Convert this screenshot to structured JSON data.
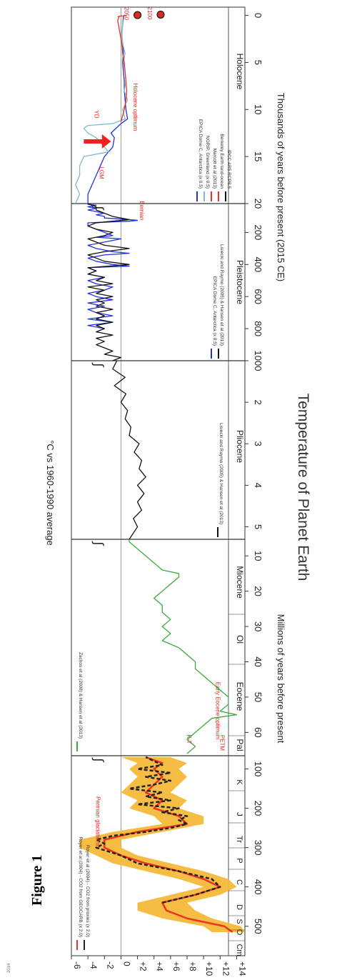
{
  "figure_label": "Figure 1",
  "footer_credit": "2014",
  "chart_data": {
    "type": "line",
    "title": "Temperature of Planet Earth",
    "ylabel": "°C vs 1960-1990 average",
    "ylim": [
      -6,
      15
    ],
    "grid": true,
    "y_ticks": [
      "+14",
      "+12",
      "+10",
      "+8",
      "+6",
      "+4",
      "+2",
      "0",
      "-2",
      "-4",
      "-6"
    ],
    "panels": [
      {
        "name": "Phanerozoic",
        "periods": [
          "Cm",
          "O",
          "S",
          "D",
          "C",
          "P",
          "Tr",
          "J",
          "K"
        ],
        "x_ticks": [
          "500",
          "400",
          "300",
          "200",
          "100"
        ],
        "legend": [
          "Royer et al (2004) - CO2 from GEOCARB (x 2.0)",
          "Royer et al (2004) - CO2 from proxies (x 2.0)"
        ],
        "annotations": [
          "Permian glaciations"
        ],
        "series": [
          {
            "name": "Royer et al (2004) - CO2 from GEOCARB (x 2.0)",
            "color": "#ee3322",
            "x": [
              515,
              500,
              480,
              460,
              440,
              420,
              400,
              380,
              360,
              340,
              320,
              300,
              280,
              260,
              240,
              220,
              200,
              180,
              160,
              140,
              120,
              100,
              85,
              70
            ],
            "y": [
              13.5,
              12.5,
              8,
              5.5,
              5,
              9,
              12,
              10,
              7,
              3,
              0,
              -2,
              -2,
              2,
              8,
              7,
              4,
              5,
              3,
              4,
              5,
              4,
              5,
              3
            ]
          },
          {
            "name": "Royer et al (2004) - CO2 from proxies (x 2.0)",
            "color": "#222222",
            "x": [
              440,
              420,
              400,
              380,
              360,
              340,
              320,
              300,
              290,
              280,
              270,
              260,
              250,
              240,
              230,
              220,
              210,
              200,
              190,
              180,
              170,
              160,
              150,
              140,
              130,
              120,
              110,
              100,
              90,
              80,
              70
            ],
            "y": [
              5,
              9,
              12,
              11,
              7,
              2,
              0,
              -3,
              -2,
              -3,
              -1,
              3,
              6,
              8,
              7,
              8,
              5,
              7,
              2,
              6,
              3,
              5,
              1,
              4,
              6,
              3,
              6,
              2,
              5,
              4,
              3
            ]
          }
        ]
      },
      {
        "name": "Cenozoic",
        "epochs": [
          "Pal",
          "Eocene",
          "Ol",
          "Miocene"
        ],
        "x_ticks": [
          "60",
          "50",
          "40",
          "30",
          "20",
          "10"
        ],
        "legend": [
          "Zachos et al (2008) & Hansen et al (2013)"
        ],
        "annotations": [
          "PETM",
          "Early Eocene optimum",
          "K-T"
        ],
        "series": [
          {
            "name": "Zachos et al (2008) & Hansen et al (2013)",
            "color": "#3daa3d",
            "x": [
              66,
              64,
              62,
              60,
              58,
              56,
              55,
              54,
              52,
              50,
              48,
              46,
              44,
              42,
              40,
              38,
              36,
              34,
              32,
              30,
              28,
              26,
              24,
              22,
              20,
              18,
              16,
              15,
              14,
              12,
              10,
              8,
              6,
              5.3
            ],
            "y": [
              8,
              9,
              8,
              9,
              10,
              11,
              14,
              12,
              13,
              13,
              12,
              11,
              10,
              9,
              9,
              8,
              7,
              5,
              6,
              5,
              6,
              5,
              5,
              4,
              5,
              6,
              7,
              7,
              5,
              4,
              3,
              2,
              1,
              1
            ]
          }
        ]
      },
      {
        "name": "Pliocene",
        "epochs": [
          "Pliocene"
        ],
        "x_ticks": [
          "5",
          "4",
          "3",
          "2"
        ],
        "legend": [
          "Lisiecki and Raymo (2005) & Hansen et al (2013)"
        ],
        "series": [
          {
            "name": "Lisiecki and Raymo (2005) & Hansen et al (2013)",
            "color": "#111111",
            "x": [
              5.3,
              5.0,
              4.8,
              4.6,
              4.4,
              4.2,
              4.0,
              3.8,
              3.6,
              3.4,
              3.2,
              3.0,
              2.8,
              2.6,
              2.4,
              2.2,
              2.0,
              1.8,
              1.6,
              1.4,
              1.2,
              1.0
            ],
            "y": [
              1,
              2,
              1.5,
              2.5,
              2,
              2.8,
              2,
              3,
              2.2,
              2.5,
              1.6,
              2.2,
              1,
              1.2,
              0.5,
              0.8,
              0,
              0.6,
              -0.8,
              0.5,
              -1,
              -0.5
            ]
          }
        ]
      },
      {
        "name": "Pleistocene",
        "epochs": [
          "Pleistocene"
        ],
        "x_ticks": [
          "1000",
          "800",
          "600",
          "400",
          "200"
        ],
        "legend": [
          "EPICA Dome C, Antarctica (x 0.5)",
          "Lisiecki and Raymo (2005) & Hansen et al (2013)"
        ],
        "annotations": [
          "Eemian"
        ],
        "series": [
          {
            "name": "EPICA Dome C, Antarctica (x 0.5)",
            "color": "#2233dd",
            "x": [
              800,
              780,
              760,
              740,
              720,
              700,
              680,
              660,
              640,
              620,
              600,
              580,
              560,
              540,
              520,
              500,
              480,
              460,
              440,
              420,
              410,
              400,
              380,
              360,
              340,
              330,
              320,
              300,
              280,
              260,
              240,
              230,
              220,
              200,
              180,
              160,
              140,
              130,
              125,
              120,
              110,
              100,
              90,
              80,
              70,
              60,
              50,
              40,
              30,
              25,
              20
            ],
            "y": [
              -2,
              -4,
              -1,
              -4,
              -1,
              -3,
              -4,
              -2,
              -4,
              -1,
              -3,
              -4,
              -2,
              -1,
              -3,
              -4,
              -2,
              -4,
              -3,
              -4,
              1,
              -1,
              -3,
              -4,
              -2,
              1,
              -1,
              -3,
              -4,
              -2,
              0,
              -3,
              -1,
              -2,
              -3,
              -4,
              -4,
              1,
              2,
              1,
              -2,
              -2,
              -3,
              -2,
              -3,
              -4,
              -3,
              -4,
              -3,
              -4,
              -4
            ]
          },
          {
            "name": "Lisiecki and Raymo (2005) & Hansen et al (2013)",
            "color": "#111111",
            "x": [
              1000,
              980,
              960,
              940,
              920,
              900,
              880,
              860,
              840,
              820,
              800,
              780,
              760,
              740,
              720,
              700,
              680,
              660,
              640,
              620,
              600,
              580,
              560,
              540,
              520,
              500,
              480,
              460,
              440,
              420,
              400,
              380,
              360,
              340,
              320,
              300,
              280,
              260,
              240,
              220,
              200,
              180,
              160,
              140,
              120,
              100,
              80,
              60,
              40,
              20
            ],
            "y": [
              -1,
              0,
              -2,
              -1,
              -2,
              -3,
              -2,
              -3,
              -1,
              -3,
              -2,
              -3,
              -1,
              -3,
              -2,
              -3,
              -1,
              -3,
              -2,
              -3,
              -1,
              -3,
              -2,
              -4,
              -1,
              -3,
              -2,
              -4,
              -3,
              -4,
              1,
              -2,
              -3,
              -4,
              -2,
              1,
              -2,
              -3,
              -4,
              -2,
              -1,
              -3,
              -4,
              -3,
              1,
              -1,
              -2,
              -3,
              -3,
              -4
            ]
          }
        ]
      },
      {
        "name": "Holocene",
        "epochs": [
          "Holocene"
        ],
        "x_ticks": [
          "20",
          "15",
          "10",
          "5",
          "0"
        ],
        "xlabel": "Thousands of years before present (2015 CE)",
        "legend": [
          "EPICA Dome C, Antarctica (x 0.5)",
          "NGRIP, Greenland (x 0.5)",
          "Marcott et al (2013)",
          "Berkeley Earth land-ocean",
          "IPCC AR5 RCP8.5"
        ],
        "annotations": [
          "LGM",
          "YD",
          "Holocene optimum",
          "2100",
          "2050"
        ],
        "series": [
          {
            "name": "EPICA Dome C, Antarctica (x 0.5)",
            "color": "#2233dd",
            "x": [
              20,
              19,
              18,
              17,
              16,
              15,
              14,
              13,
              12.5,
              12,
              11.5,
              11,
              10,
              9,
              8,
              7,
              6,
              5,
              4,
              3,
              2,
              1,
              0
            ],
            "y": [
              -4,
              -4,
              -3.5,
              -3,
              -2.5,
              -2,
              -1,
              -0.8,
              -1.2,
              -0.6,
              0,
              0.8,
              0.6,
              0.5,
              0.4,
              0.4,
              0.3,
              0.2,
              0.3,
              0.2,
              0.1,
              0.2,
              0.3
            ]
          },
          {
            "name": "NGRIP, Greenland (x 0.5)",
            "color": "#7fb9c9",
            "x": [
              20,
              19,
              18,
              17,
              16,
              15,
              14.5,
              14,
              13.5,
              13,
              12.5,
              12,
              11.7,
              11.5,
              11,
              10,
              9,
              8,
              7,
              6,
              5,
              4,
              3,
              2,
              1,
              0
            ],
            "y": [
              -5.5,
              -5,
              -5.5,
              -5,
              -5,
              -4.5,
              -1.5,
              -2,
              -2.5,
              -3,
              -4,
              -4.5,
              -4,
              -1,
              0.5,
              0.2,
              0.8,
              0.4,
              0.6,
              0.5,
              0.3,
              0.5,
              0.2,
              0.1,
              0.2,
              0.4
            ]
          },
          {
            "name": "Marcott et al (2013)",
            "color": "#ee3322",
            "x": [
              11.3,
              10,
              9,
              8,
              7,
              6,
              5,
              4,
              3,
              2,
              1,
              0.5,
              0.1
            ],
            "y": [
              0,
              0.4,
              0.6,
              0.7,
              0.6,
              0.5,
              0.4,
              0.2,
              0.1,
              -0.1,
              -0.3,
              -0.4,
              -0.2
            ]
          },
          {
            "name": "Berkeley Earth land-ocean",
            "color": "#ee3322",
            "x": [
              0.15,
              0.12,
              0.09,
              0.06,
              0.03,
              0.0
            ],
            "y": [
              -0.4,
              -0.3,
              -0.2,
              0,
              0.3,
              0.6
            ]
          },
          {
            "name": "IPCC AR5 RCP8.5",
            "color": "#ee3322",
            "labels": [
              "2050",
              "2100"
            ],
            "x": [
              -0.035,
              -0.085
            ],
            "y": [
              2,
              4.8
            ]
          }
        ]
      }
    ],
    "bottom_axis_labels": [
      "Millions of years before present",
      "Thousands of years before present (2015 CE)"
    ]
  },
  "highlight": {
    "arrow_color": "#ee2222",
    "arrow_target": "YD"
  }
}
